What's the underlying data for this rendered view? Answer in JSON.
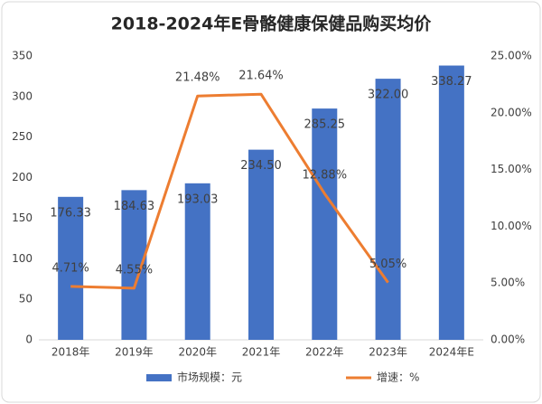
{
  "chart_data": {
    "type": "bar-line",
    "title": "2018-2024年E骨骼健康保健品购买均价",
    "categories": [
      "2018年",
      "2019年",
      "2020年",
      "2021年",
      "2022年",
      "2023年",
      "2024年E"
    ],
    "series": [
      {
        "name": "市场规模：元",
        "color": "#4472c4",
        "type": "bar",
        "values": [
          176.33,
          184.63,
          193.03,
          234.5,
          285.25,
          322,
          338.27
        ],
        "value_labels": [
          "176.33",
          "184.63",
          "193.03",
          "234.50",
          "285.25",
          "322.00",
          "338.27"
        ]
      },
      {
        "name": "增速：%",
        "color": "#ed7d31",
        "type": "line",
        "axis": "y2",
        "values": [
          4.71,
          4.55,
          21.48,
          21.64,
          12.88,
          5.05,
          null
        ],
        "value_labels": [
          "4.71%",
          "4.55%",
          "21.48%",
          "21.64%",
          "12.88%",
          "5.05%",
          null
        ]
      }
    ],
    "ylim": [
      0,
      350
    ],
    "yticks": [
      0,
      50,
      100,
      150,
      200,
      250,
      300,
      350
    ],
    "y2lim": [
      0,
      25
    ],
    "y2ticks": [
      {
        "value": 0,
        "label": "0.00%"
      },
      {
        "value": 5,
        "label": "5.00%"
      },
      {
        "value": 10,
        "label": "10.00%"
      },
      {
        "value": 15,
        "label": "15.00%"
      },
      {
        "value": 20,
        "label": "20.00%"
      },
      {
        "value": 25,
        "label": "25.00%"
      }
    ],
    "legend": "bottom"
  }
}
